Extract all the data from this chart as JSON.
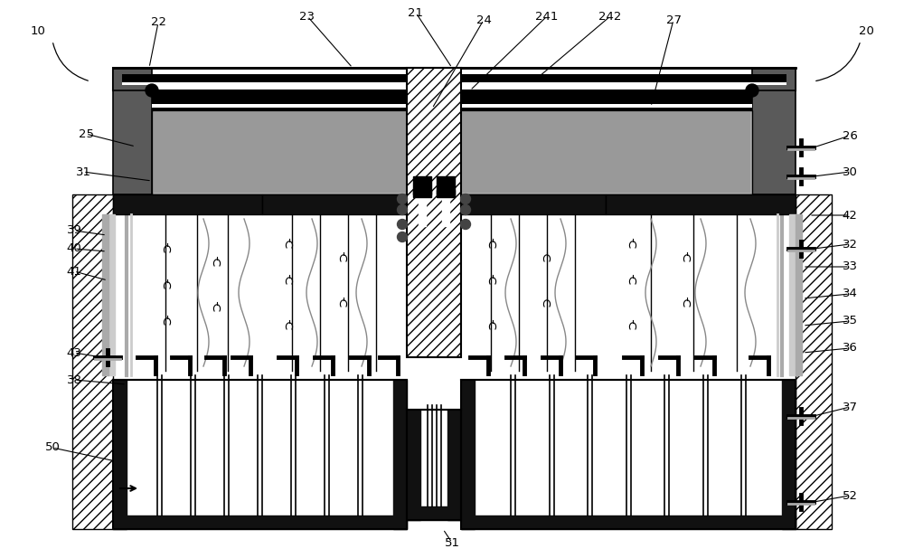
{
  "bg_color": "#ffffff",
  "black": "#000000",
  "dark": "#111111",
  "dgray": "#555555",
  "mgray": "#888888",
  "lgray": "#bbbbbb",
  "insul": "#aaaaaa",
  "hatch_col": "#333333"
}
